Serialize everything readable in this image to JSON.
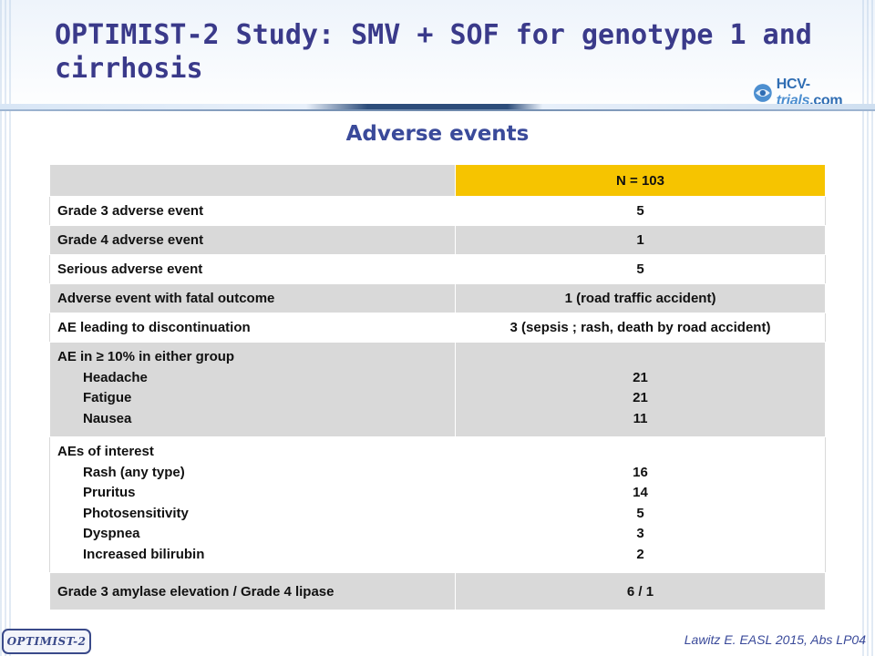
{
  "slide": {
    "title": "OPTIMIST-2 Study: SMV + SOF for genotype 1 and cirrhosis",
    "subtitle": "Adverse events",
    "logo": {
      "part1": "HCV-",
      "part2": "trials",
      "part3": ".com",
      "icon": "hcv-globe-icon"
    },
    "footer_tag": "OPTIMIST-2",
    "citation": "Lawitz E. EASL 2015, Abs LP04"
  },
  "table": {
    "header": [
      "",
      "N = 103"
    ],
    "rows": [
      {
        "label": "Grade 3 adverse event",
        "value": "5"
      },
      {
        "label": "Grade 4 adverse event",
        "value": "1"
      },
      {
        "label": "Serious adverse event",
        "value": "5"
      },
      {
        "label": "Adverse event with fatal outcome",
        "value": "1 (road traffic accident)"
      },
      {
        "label": "AE leading to discontinuation",
        "value": "3 (sepsis ; rash, death by road accident)"
      }
    ],
    "group_common": {
      "label": "AE in ≥ 10% in either group",
      "items": [
        {
          "label": "Headache",
          "value": "21"
        },
        {
          "label": "Fatigue",
          "value": "21"
        },
        {
          "label": "Nausea",
          "value": "11"
        }
      ]
    },
    "group_interest": {
      "label": "AEs of interest",
      "items": [
        {
          "label": "Rash (any type)",
          "value": "16"
        },
        {
          "label": "Pruritus",
          "value": "14"
        },
        {
          "label": "Photosensitivity",
          "value": "5"
        },
        {
          "label": "Dyspnea",
          "value": "3"
        },
        {
          "label": "Increased bilirubin",
          "value": "2"
        }
      ]
    },
    "last_row": {
      "label": "Grade 3 amylase elevation / Grade 4 lipase",
      "value": "6 / 1"
    }
  },
  "colors": {
    "title": "#3a3a8a",
    "subtitle": "#3a4a9a",
    "header_highlight": "#f6c400",
    "row_grey": "#d9d9d9"
  }
}
